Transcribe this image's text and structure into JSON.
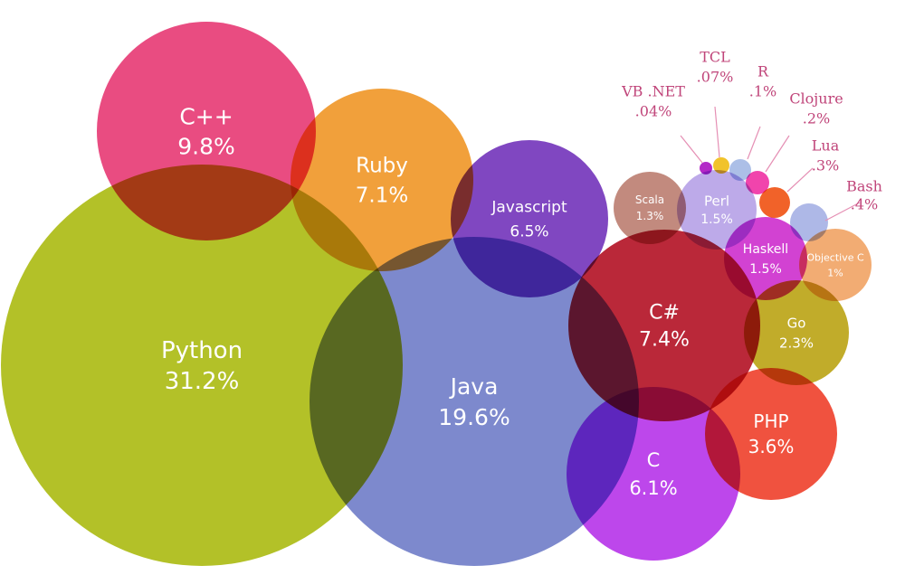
{
  "chart_data": {
    "type": "bubble",
    "title": "",
    "series": [
      {
        "name": "Python",
        "value": 31.2,
        "label": "31.2%",
        "color": "#a8b80a"
      },
      {
        "name": "Java",
        "value": 19.6,
        "label": "19.6%",
        "color": "#6b79c6"
      },
      {
        "name": "C++",
        "value": 9.8,
        "label": "9.8%",
        "color": "#e6336f"
      },
      {
        "name": "C#",
        "value": 7.4,
        "label": "7.4%",
        "color": "#b10a1e"
      },
      {
        "name": "Ruby",
        "value": 7.1,
        "label": "7.1%",
        "color": "#ef9320"
      },
      {
        "name": "Javascript",
        "value": 6.5,
        "label": "6.5%",
        "color": "#6e2db8"
      },
      {
        "name": "C",
        "value": 6.1,
        "label": "6.1%",
        "color": "#b42ee8"
      },
      {
        "name": "PHP",
        "value": 3.6,
        "label": "3.6%",
        "color": "#ee3a24"
      },
      {
        "name": "Go",
        "value": 2.3,
        "label": "2.3%",
        "color": "#b8a10c"
      },
      {
        "name": "Perl",
        "value": 1.5,
        "label": "1.5%",
        "color": "#b49ee6"
      },
      {
        "name": "Haskell",
        "value": 1.5,
        "label": "1.5%",
        "color": "#cc28cc"
      },
      {
        "name": "Scala",
        "value": 1.3,
        "label": "1.3%",
        "color": "#b97a6c"
      },
      {
        "name": "Objective C",
        "value": 1.0,
        "label": "1%",
        "color": "#f0a060"
      },
      {
        "name": "Bash",
        "value": 0.4,
        "label": ".4%",
        "color": "#aab4e6"
      },
      {
        "name": "Lua",
        "value": 0.3,
        "label": ".3%",
        "color": "#f05a1e"
      },
      {
        "name": "Clojure",
        "value": 0.2,
        "label": ".2%",
        "color": "#f03aa8"
      },
      {
        "name": "R",
        "value": 0.1,
        "label": ".1%",
        "color": "#a8bce6"
      },
      {
        "name": "TCL",
        "value": 0.07,
        "label": ".07%",
        "color": "#f0c020"
      },
      {
        "name": "VB .NET",
        "value": 0.04,
        "label": ".04%",
        "color": "#b01cc4"
      }
    ],
    "colors": {
      "external_label": "#c0457a",
      "leader_line": "#e58fb4"
    }
  }
}
